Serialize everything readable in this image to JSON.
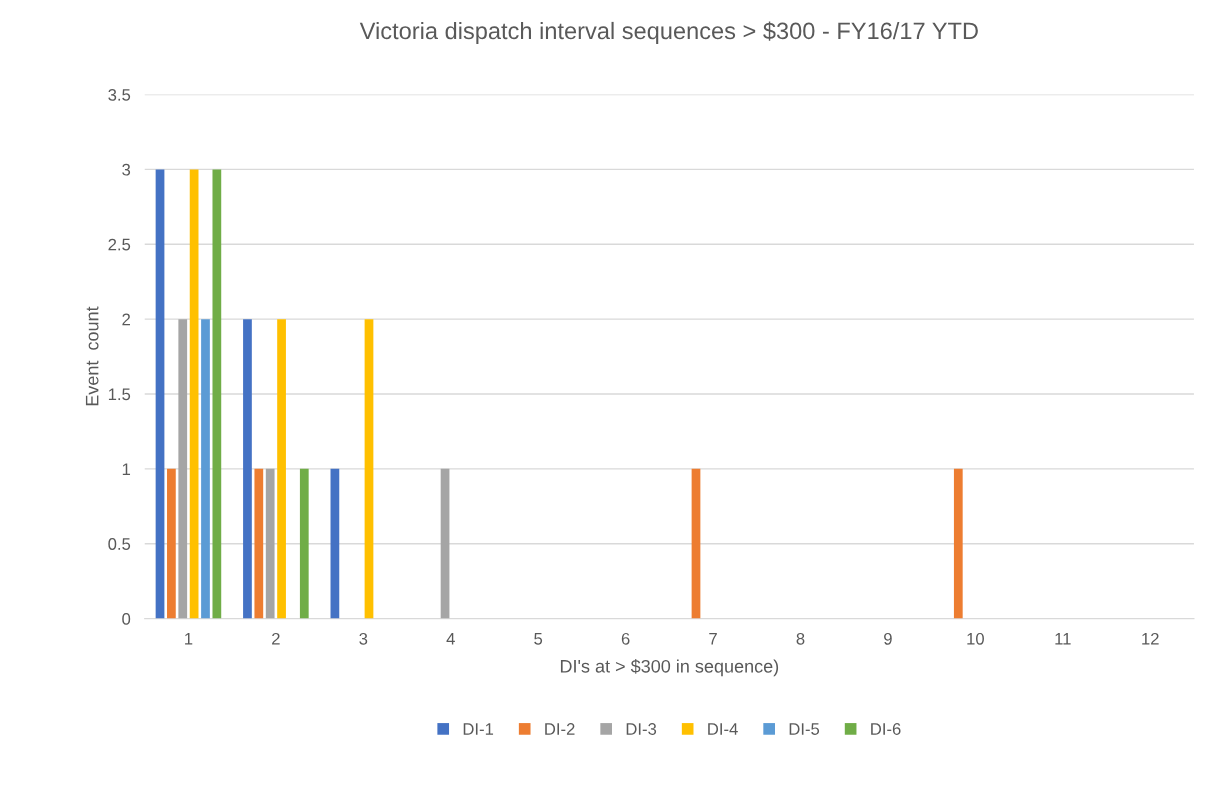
{
  "chart_data": {
    "type": "bar",
    "title": "Victoria dispatch interval sequences > $300 - FY16/17 YTD",
    "xlabel": "DI's at > $300 in sequence)",
    "ylabel": "Event  count",
    "categories": [
      "1",
      "2",
      "3",
      "4",
      "5",
      "6",
      "7",
      "8",
      "9",
      "10",
      "11",
      "12"
    ],
    "series": [
      {
        "name": "DI-1",
        "color": "#4472c4",
        "values": [
          3,
          2,
          1,
          0,
          0,
          0,
          0,
          0,
          0,
          0,
          0,
          0
        ]
      },
      {
        "name": "DI-2",
        "color": "#ed7d31",
        "values": [
          1,
          1,
          0,
          0,
          0,
          0,
          1,
          0,
          0,
          1,
          0,
          0
        ]
      },
      {
        "name": "DI-3",
        "color": "#a5a5a5",
        "values": [
          2,
          1,
          0,
          1,
          0,
          0,
          0,
          0,
          0,
          0,
          0,
          0
        ]
      },
      {
        "name": "DI-4",
        "color": "#ffc000",
        "values": [
          3,
          2,
          2,
          0,
          0,
          0,
          0,
          0,
          0,
          0,
          0,
          0
        ]
      },
      {
        "name": "DI-5",
        "color": "#5b9bd5",
        "values": [
          2,
          0,
          0,
          0,
          0,
          0,
          0,
          0,
          0,
          0,
          0,
          0
        ]
      },
      {
        "name": "DI-6",
        "color": "#70ad47",
        "values": [
          3,
          1,
          0,
          0,
          0,
          0,
          0,
          0,
          0,
          0,
          0,
          0
        ]
      }
    ],
    "ylim": [
      0,
      3.5
    ],
    "yticks": [
      0,
      0.5,
      1,
      1.5,
      2,
      2.5,
      3,
      3.5
    ],
    "grid": "y",
    "legend": "bottom"
  }
}
